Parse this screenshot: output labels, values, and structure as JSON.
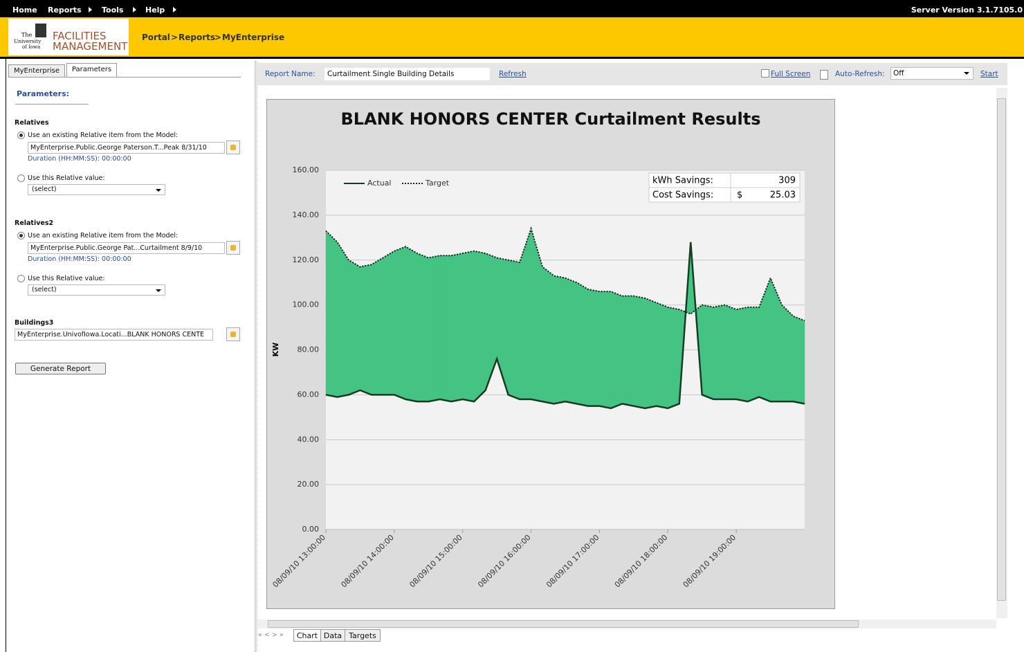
{
  "menu": [
    "Home",
    "Reports",
    "Tools",
    "Help"
  ],
  "server_version": "Server Version 3.1.7105.0",
  "logo": {
    "the": "The",
    "university": "University",
    "of_iowa": "of Iowa",
    "line1": "FACILITIES",
    "line2": "MANAGEMENT"
  },
  "breadcrumb": [
    "Portal",
    "Reports",
    "MyEnterprise"
  ],
  "breadcrumb_separator": ">",
  "tabs": [
    "MyEnterprise",
    "Parameters"
  ],
  "parameters": {
    "heading": "Parameters:",
    "groups": [
      {
        "title": "Relatives",
        "option1": "Use an existing Relative item from the Model:",
        "item": "MyEnterprise.Public.George Paterson.T...Peak 8/31/10",
        "duration": "Duration (HH:MM:SS): 00:00:00",
        "option2": "Use this Relative value:",
        "select": "(select)"
      },
      {
        "title": "Relatives2",
        "option1": "Use an existing Relative item from the Model:",
        "item": "MyEnterprise.Public.George Pat...Curtailment  8/9/10",
        "duration": "Duration (HH:MM:SS): 00:00:00",
        "option2": "Use this Relative value:",
        "select": "(select)"
      }
    ],
    "buildings": {
      "title": "Buildings3",
      "item": "MyEnterprise.UnivofIowa.Locati...BLANK HONORS CENTE"
    },
    "button": "Generate Report"
  },
  "toolbar": {
    "report_name_label": "Report Name:",
    "report_name": "Curtailment Single Building Details",
    "refresh": "Refresh",
    "full_screen": "Full Screen",
    "auto_refresh_label": "Auto-Refresh:",
    "auto_refresh": "Off",
    "start": "Start"
  },
  "chart_data": {
    "type": "line",
    "title": "BLANK HONORS CENTER Curtailment Results",
    "y_label": "KW",
    "x": [
      "08/09/10 13:00:00",
      "08/09/10 13:10:00",
      "08/09/10 13:20:00",
      "08/09/10 13:30:00",
      "08/09/10 13:40:00",
      "08/09/10 13:50:00",
      "08/09/10 14:00:00",
      "08/09/10 14:10:00",
      "08/09/10 14:20:00",
      "08/09/10 14:30:00",
      "08/09/10 14:40:00",
      "08/09/10 14:50:00",
      "08/09/10 15:00:00",
      "08/09/10 15:10:00",
      "08/09/10 15:20:00",
      "08/09/10 15:30:00",
      "08/09/10 15:40:00",
      "08/09/10 15:50:00",
      "08/09/10 16:00:00",
      "08/09/10 16:10:00",
      "08/09/10 16:20:00",
      "08/09/10 16:30:00",
      "08/09/10 16:40:00",
      "08/09/10 16:50:00",
      "08/09/10 17:00:00",
      "08/09/10 17:10:00",
      "08/09/10 17:20:00",
      "08/09/10 17:30:00",
      "08/09/10 17:40:00",
      "08/09/10 17:50:00",
      "08/09/10 18:00:00",
      "08/09/10 18:10:00",
      "08/09/10 18:20:00",
      "08/09/10 18:30:00",
      "08/09/10 18:40:00",
      "08/09/10 18:50:00",
      "08/09/10 19:00:00",
      "08/09/10 19:10:00",
      "08/09/10 19:20:00",
      "08/09/10 19:30:00",
      "08/09/10 19:40:00",
      "08/09/10 19:50:00",
      "08/09/10 20:00:00"
    ],
    "series": [
      {
        "name": "Actual",
        "color": "#143d22",
        "values": [
          60,
          59,
          60,
          62,
          60,
          60,
          60,
          58,
          57,
          57,
          58,
          57,
          58,
          57,
          62,
          76,
          60,
          58,
          58,
          57,
          56,
          57,
          56,
          55,
          55,
          54,
          56,
          55,
          54,
          55,
          54,
          56,
          128,
          60,
          58,
          58,
          58,
          57,
          59,
          57,
          57,
          57,
          56
        ]
      },
      {
        "name": "Target",
        "color": "#1a1a1a",
        "dash": "dotted",
        "values": [
          133,
          128,
          120,
          117,
          118,
          121,
          124,
          126,
          123,
          121,
          122,
          122,
          123,
          124,
          123,
          121,
          120,
          119,
          134,
          117,
          113,
          112,
          110,
          107,
          106,
          106,
          104,
          104,
          103,
          101,
          99,
          98,
          96,
          100,
          99,
          100,
          98,
          99,
          99,
          112,
          100,
          95,
          93
        ]
      }
    ],
    "fill_colors": {
      "savings": "#45c383",
      "excess": "#e53e41"
    },
    "xlim": [
      "08/09/10 13:00:00",
      "08/09/10 20:00:00"
    ],
    "xticks": [
      "08/09/10 13:00:00",
      "08/09/10 14:00:00",
      "08/09/10 15:00:00",
      "08/09/10 16:00:00",
      "08/09/10 17:00:00",
      "08/09/10 18:00:00",
      "08/09/10 19:00:00"
    ],
    "ylim": [
      0,
      160
    ],
    "yticks": [
      {
        "value": 0,
        "label": "0.00"
      },
      {
        "value": 20,
        "label": "20.00"
      },
      {
        "value": 40,
        "label": "40.00"
      },
      {
        "value": 60,
        "label": "60.00"
      },
      {
        "value": 80,
        "label": "80.00"
      },
      {
        "value": 100,
        "label": "100.00"
      },
      {
        "value": 120,
        "label": "120.00"
      },
      {
        "value": 140,
        "label": "140.00"
      },
      {
        "value": 160,
        "label": "160.00"
      }
    ],
    "grid": true,
    "legend": "top-left",
    "savings": [
      {
        "label": "kWh Savings:",
        "value": 309
      },
      {
        "label": "Cost Savings:",
        "unit": "$",
        "value": 25.03
      }
    ]
  },
  "pager": "« < > »",
  "bottom_tabs": [
    "Chart",
    "Data",
    "Targets"
  ]
}
